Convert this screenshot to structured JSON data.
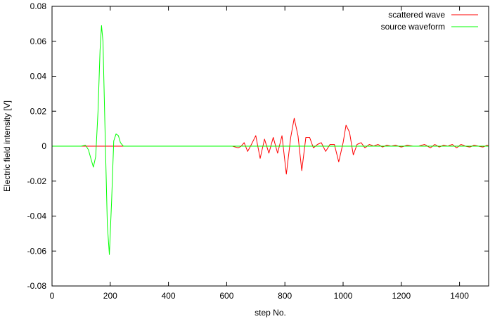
{
  "chart_data": {
    "type": "line",
    "title": "",
    "xlabel": "step No.",
    "ylabel": "Electric field intensity [V]",
    "xlim": [
      0,
      1500
    ],
    "ylim": [
      -0.08,
      0.08
    ],
    "xticks": [
      0,
      200,
      400,
      600,
      800,
      1000,
      1200,
      1400
    ],
    "yticks": [
      -0.08,
      -0.06,
      -0.04,
      -0.02,
      0,
      0.02,
      0.04,
      0.06,
      0.08
    ],
    "ytick_labels": [
      "-0.08",
      "-0.06",
      "-0.04",
      "-0.02",
      "0",
      "0.02",
      "0.04",
      "0.06",
      "0.08"
    ],
    "grid": false,
    "legend_position": "top-right",
    "series": [
      {
        "name": "scattered wave",
        "color": "#ff0000",
        "x": [
          0,
          100,
          200,
          300,
          400,
          500,
          600,
          620,
          640,
          650,
          660,
          672,
          685,
          700,
          715,
          730,
          745,
          760,
          775,
          790,
          805,
          820,
          832,
          845,
          858,
          872,
          885,
          898,
          912,
          925,
          940,
          955,
          970,
          985,
          1000,
          1010,
          1022,
          1035,
          1048,
          1062,
          1075,
          1090,
          1105,
          1120,
          1135,
          1150,
          1165,
          1180,
          1200,
          1220,
          1240,
          1260,
          1280,
          1300,
          1315,
          1330,
          1345,
          1360,
          1375,
          1390,
          1405,
          1420,
          1435,
          1450,
          1465,
          1480,
          1495,
          1500
        ],
        "y": [
          0,
          0,
          0,
          0,
          0,
          0,
          0,
          0,
          -0.001,
          0,
          0.002,
          -0.003,
          0.001,
          0.006,
          -0.007,
          0.004,
          -0.004,
          0.005,
          -0.004,
          0.006,
          -0.016,
          0.005,
          0.016,
          0.006,
          -0.014,
          0.005,
          0.005,
          -0.001,
          0.001,
          0.002,
          -0.003,
          0.001,
          0.001,
          -0.009,
          0.002,
          0.012,
          0.008,
          -0.005,
          0.001,
          0.002,
          -0.001,
          0.001,
          0,
          0.001,
          -0.0005,
          0.0005,
          0,
          0.0005,
          -0.0005,
          0.0005,
          0,
          0,
          0.001,
          -0.001,
          0.001,
          -0.0005,
          0.0005,
          0,
          0.001,
          -0.001,
          0.001,
          0,
          -0.0005,
          0.0005,
          0,
          -0.0005,
          0.0005,
          0
        ]
      },
      {
        "name": "source waveform",
        "color": "#00ff00",
        "x": [
          0,
          100,
          115,
          125,
          135,
          142,
          150,
          158,
          165,
          170,
          175,
          182,
          190,
          197,
          205,
          212,
          220,
          228,
          235,
          245,
          300,
          400,
          600,
          800,
          1000,
          1200,
          1400,
          1500
        ],
        "y": [
          0,
          0,
          0.0005,
          -0.002,
          -0.008,
          -0.012,
          -0.006,
          0.02,
          0.055,
          0.069,
          0.06,
          0.01,
          -0.045,
          -0.062,
          -0.03,
          0.003,
          0.007,
          0.006,
          0.002,
          0,
          0,
          0,
          0,
          0,
          0,
          0,
          0,
          0
        ]
      }
    ]
  }
}
